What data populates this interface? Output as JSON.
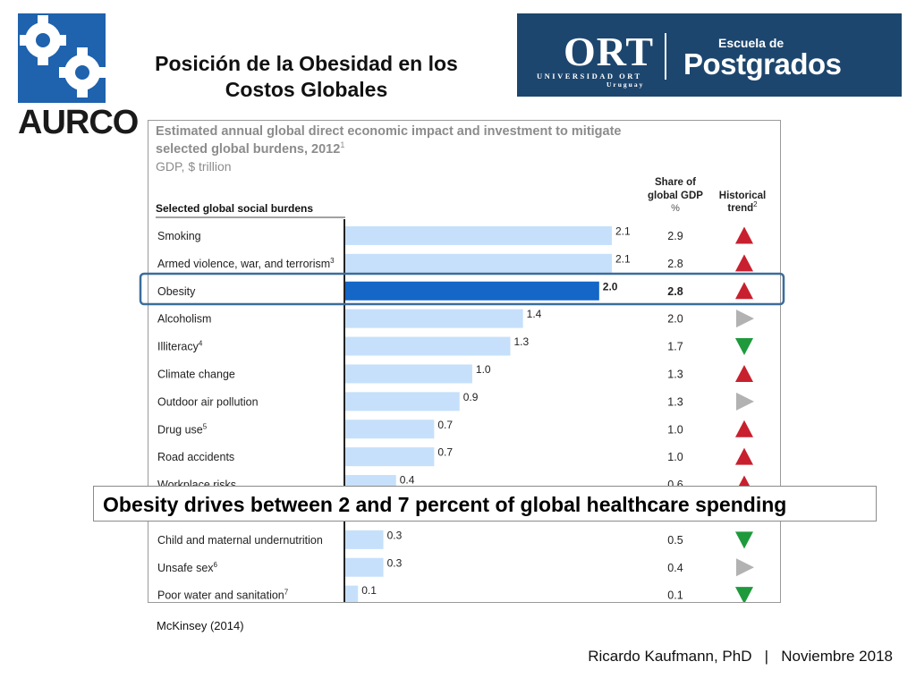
{
  "logo": {
    "text": "AURCO"
  },
  "slide_title": {
    "line1": "Posición de la Obesidad en los",
    "line2": "Costos Globales"
  },
  "ort": {
    "word": "ORT",
    "sub": "UNIVERSIDAD ORT",
    "sub2": "Uruguay",
    "escuela": "Escuela de",
    "postgrados": "Postgrados"
  },
  "chart_data": {
    "type": "bar",
    "orientation": "horizontal",
    "title": "Estimated annual global direct economic impact and investment to mitigate selected global burdens, 2012",
    "title_line1": "Estimated annual global direct economic impact and investment to mitigate",
    "title_line2": "selected global burdens, 2012",
    "title_footnote": "1",
    "subtitle": "GDP, $ trillion",
    "category_header": "Selected global social burdens",
    "share_header_line1": "Share of",
    "share_header_line2": "global GDP",
    "share_header_unit": "%",
    "trend_header_line1": "Historical",
    "trend_header_line2": "trend",
    "trend_header_footnote": "2",
    "highlight": "Obesity",
    "categories": [
      "Smoking",
      "Armed violence, war, and terrorism",
      "Obesity",
      "Alcoholism",
      "Illiteracy",
      "Climate change",
      "Outdoor air pollution",
      "Drug use",
      "Road accidents",
      "Workplace risks",
      "",
      "Child and maternal undernutrition",
      "Unsafe sex",
      "Poor water and sanitation"
    ],
    "footnotes": [
      "",
      "3",
      "",
      "",
      "4",
      "",
      "",
      "5",
      "",
      "",
      "",
      "",
      "6",
      "7"
    ],
    "values": [
      2.1,
      2.1,
      2.0,
      1.4,
      1.3,
      1.0,
      0.9,
      0.7,
      0.7,
      0.4,
      null,
      0.3,
      0.3,
      0.1
    ],
    "value_labels": [
      "2.1",
      "2.1",
      "2.0",
      "1.4",
      "1.3",
      "1.0",
      "0.9",
      "0.7",
      "0.7",
      "0.4",
      "",
      "0.3",
      "0.3",
      "0.1"
    ],
    "share_gdp": [
      "2.9",
      "2.8",
      "2.8",
      "2.0",
      "1.7",
      "1.3",
      "1.3",
      "1.0",
      "1.0",
      "0.6",
      "",
      "0.5",
      "0.4",
      "0.1"
    ],
    "trend": [
      "up",
      "up",
      "up",
      "flat",
      "down",
      "up",
      "flat",
      "up",
      "up",
      "up",
      "",
      "down",
      "flat",
      "down"
    ],
    "xlim": [
      0,
      2.1
    ],
    "colors": {
      "bar": "#c6e0fb",
      "highlight_bar": "#1466c7",
      "up": "#c8202e",
      "down": "#1e9a3c",
      "flat": "#b2b2b2",
      "highlight_box": "#3a6d9c"
    }
  },
  "callout": "Obesity drives between 2 and 7 percent of global healthcare spending",
  "source": "McKinsey (2014)",
  "footer": "Ricardo Kaufmann, PhD   |   Noviembre 2018"
}
